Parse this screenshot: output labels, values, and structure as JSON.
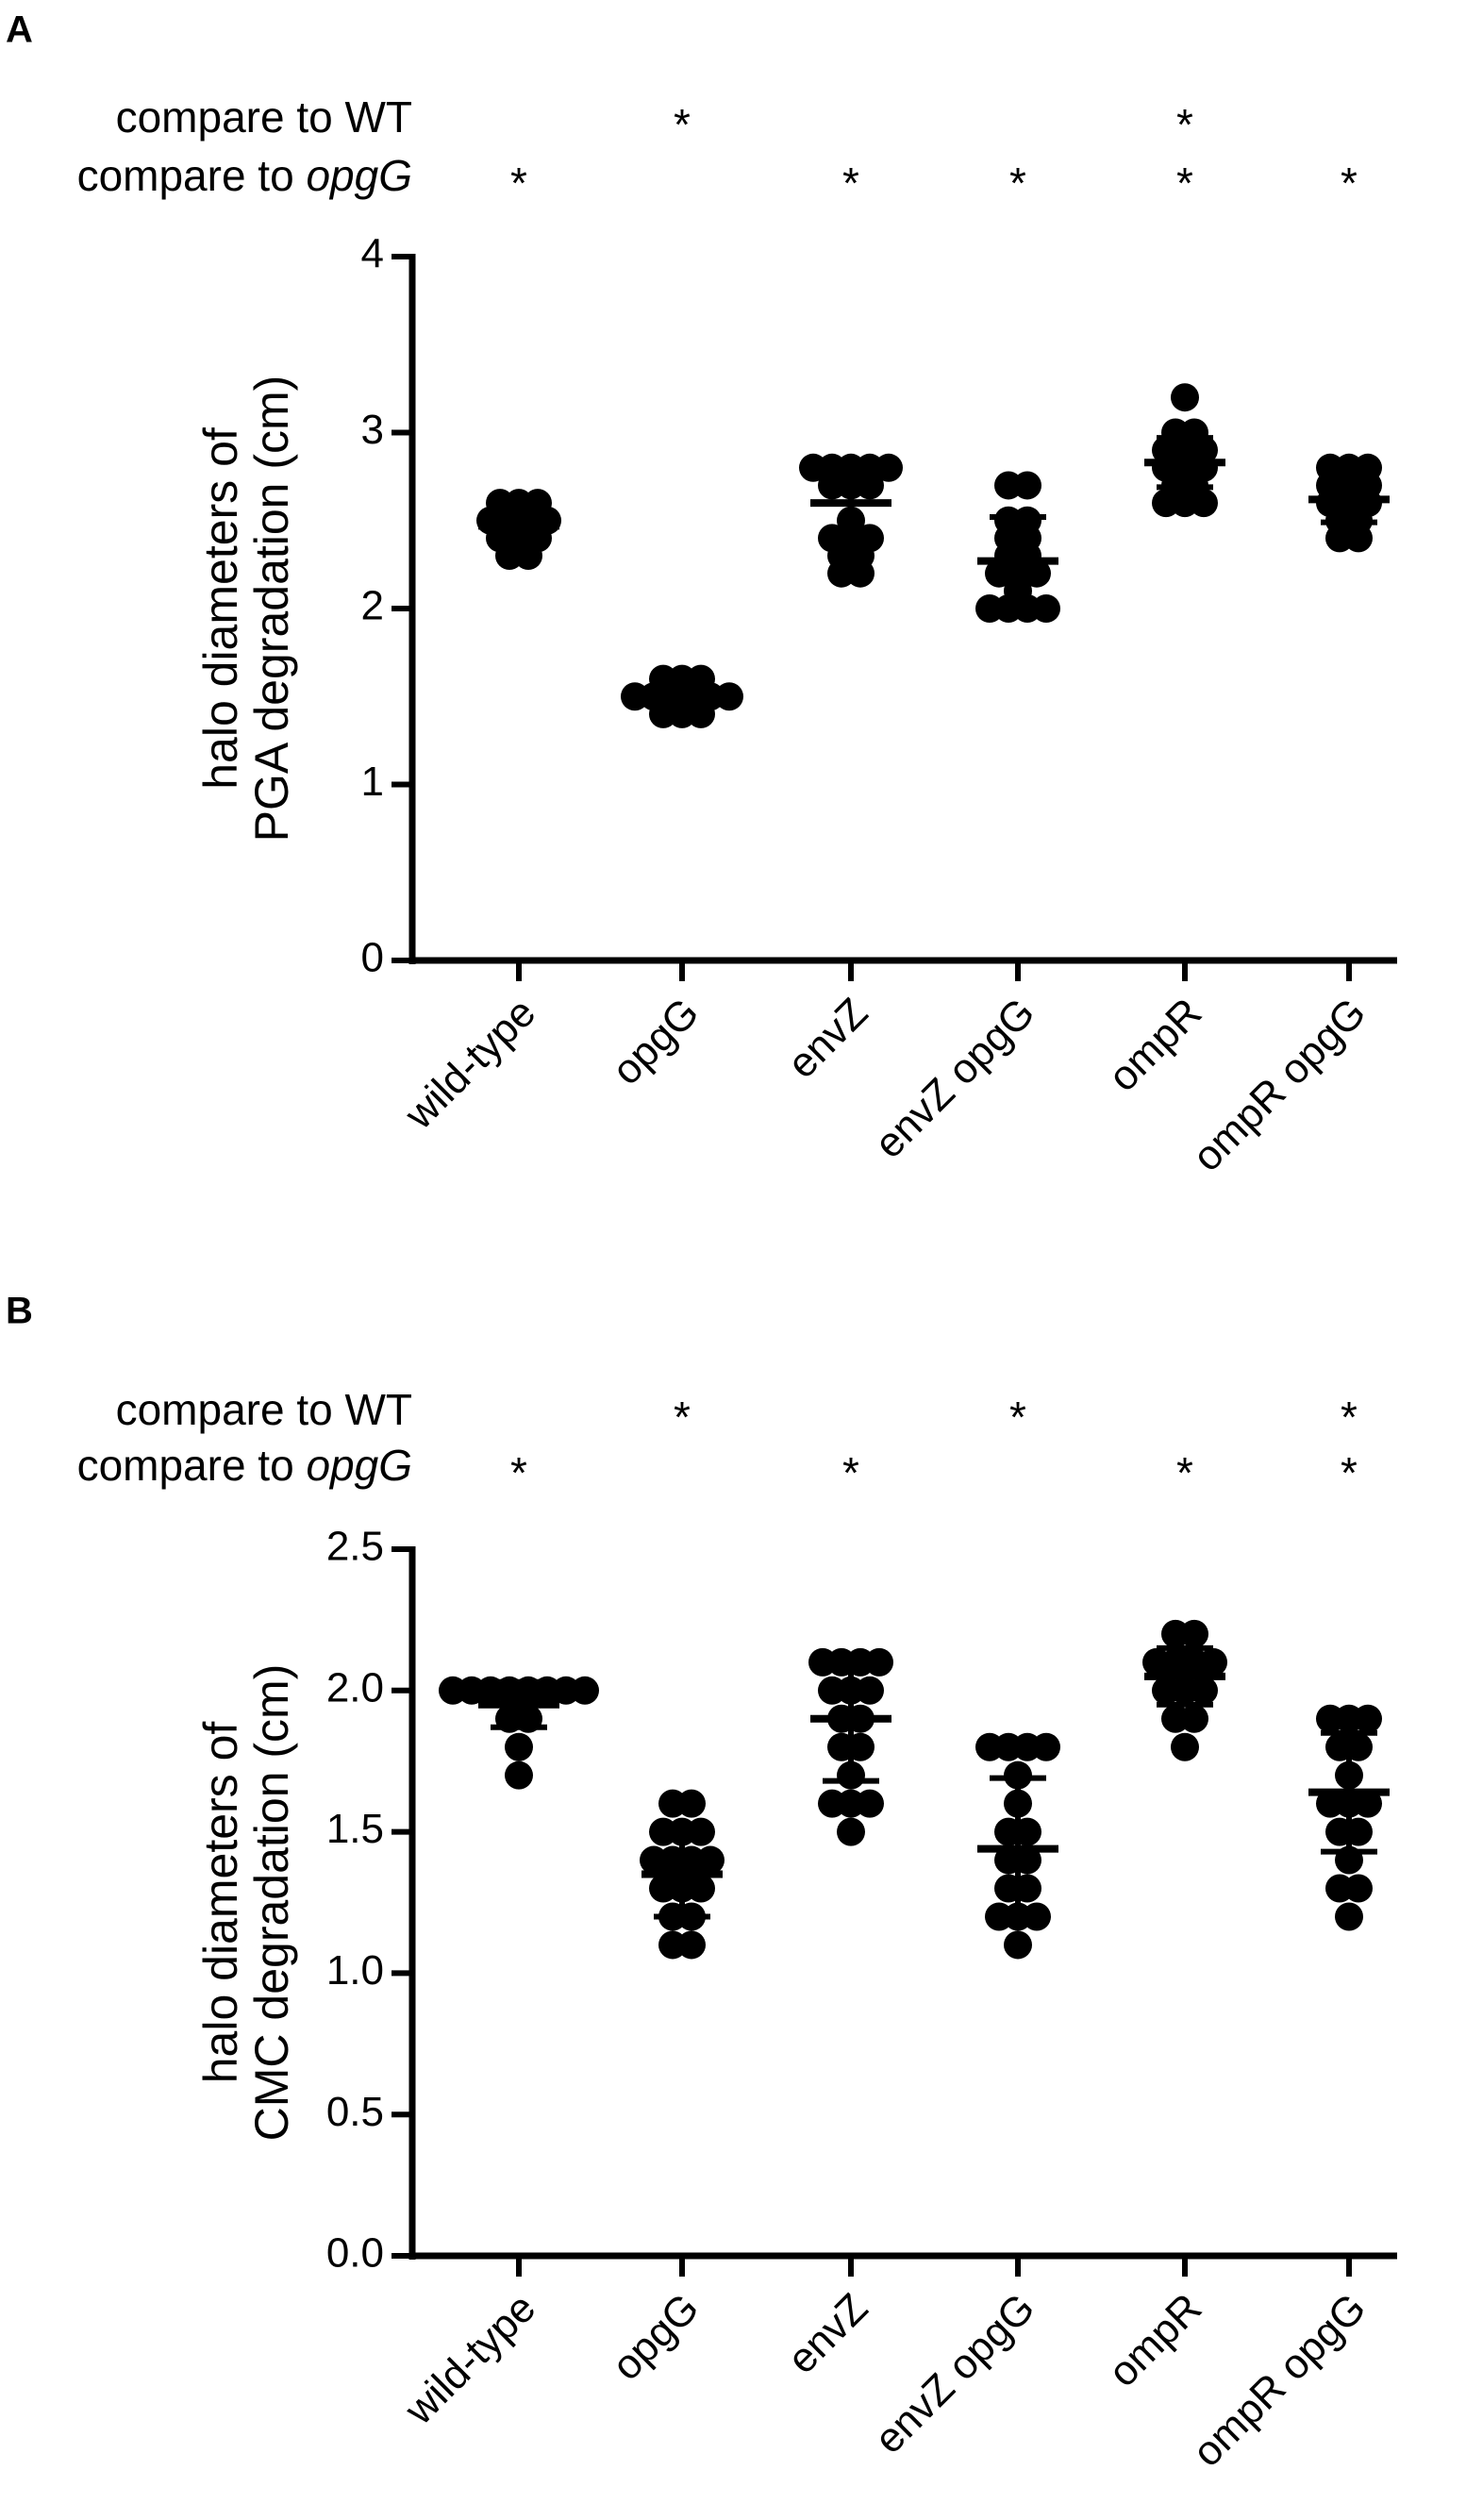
{
  "chart_data": [
    {
      "type": "strip",
      "panel_label": "A",
      "ylabel": [
        "halo diameters of",
        "PGA degradation (cm)"
      ],
      "categories": [
        "wild-type",
        "opgG",
        "envZ",
        "envZ opgG",
        "ompR",
        "ompR opgG"
      ],
      "significance": [
        {
          "label": [
            "compare to WT"
          ],
          "marks": [
            null,
            "*",
            null,
            null,
            "*",
            null
          ]
        },
        {
          "label": [
            "compare to ",
            "opgG"
          ],
          "marks": [
            "*",
            null,
            "*",
            "*",
            "*",
            "*"
          ]
        }
      ],
      "points": [
        [
          2.6,
          2.6,
          2.6,
          2.5,
          2.5,
          2.5,
          2.4,
          2.4,
          2.4,
          2.3,
          2.3,
          2.5
        ],
        [
          1.6,
          1.6,
          1.6,
          1.5,
          1.5,
          1.5,
          1.5,
          1.4,
          1.4,
          1.4,
          1.5,
          1.5
        ],
        [
          2.8,
          2.8,
          2.8,
          2.8,
          2.8,
          2.7,
          2.7,
          2.7,
          2.5,
          2.4,
          2.4,
          2.4,
          2.3,
          2.3,
          2.2,
          2.2
        ],
        [
          2.7,
          2.7,
          2.5,
          2.5,
          2.4,
          2.4,
          2.3,
          2.2,
          2.2,
          2.1,
          2.0,
          2.0,
          2.0,
          2.0,
          2.2,
          2.3
        ],
        [
          3.2,
          3.0,
          3.0,
          2.9,
          2.9,
          2.8,
          2.8,
          2.8,
          2.7,
          2.7,
          2.6,
          2.6,
          2.6,
          2.9
        ],
        [
          2.8,
          2.8,
          2.8,
          2.7,
          2.7,
          2.6,
          2.6,
          2.6,
          2.5,
          2.5,
          2.4,
          2.4,
          2.7
        ]
      ],
      "means": [
        2.47,
        1.5,
        2.6,
        2.27,
        2.83,
        2.62
      ],
      "sd": [
        0.08,
        0.06,
        0.2,
        0.25,
        0.14,
        0.13
      ],
      "color": "#000000",
      "ylim": [
        0,
        4
      ],
      "yticks": [
        0,
        1,
        2,
        3,
        4
      ]
    },
    {
      "type": "strip",
      "panel_label": "B",
      "ylabel": [
        "halo diameters of",
        "CMC degradation (cm)"
      ],
      "categories": [
        "wild-type",
        "opgG",
        "envZ",
        "envZ opgG",
        "ompR",
        "ompR opgG"
      ],
      "significance": [
        {
          "label": [
            "compare to WT"
          ],
          "marks": [
            null,
            "*",
            null,
            "*",
            null,
            "*"
          ]
        },
        {
          "label": [
            "compare to ",
            "opgG"
          ],
          "marks": [
            "*",
            null,
            "*",
            null,
            "*",
            "*"
          ]
        }
      ],
      "points": [
        [
          2.0,
          2.0,
          2.0,
          2.0,
          2.0,
          2.0,
          1.9,
          1.9,
          1.8,
          1.7,
          2.0,
          2.0
        ],
        [
          1.6,
          1.6,
          1.5,
          1.5,
          1.5,
          1.4,
          1.4,
          1.4,
          1.3,
          1.3,
          1.2,
          1.2,
          1.1,
          1.1,
          1.3,
          1.4
        ],
        [
          2.1,
          2.1,
          2.1,
          2.1,
          2.0,
          2.0,
          1.9,
          1.9,
          1.8,
          1.8,
          1.7,
          1.6,
          1.6,
          1.5,
          1.6,
          2.0
        ],
        [
          1.8,
          1.8,
          1.8,
          1.8,
          1.7,
          1.6,
          1.5,
          1.5,
          1.4,
          1.3,
          1.3,
          1.2,
          1.2,
          1.1,
          1.2,
          1.4
        ],
        [
          2.2,
          2.2,
          2.1,
          2.1,
          2.1,
          2.0,
          2.0,
          2.0,
          1.9,
          1.9,
          1.8,
          2.1
        ],
        [
          1.9,
          1.9,
          1.9,
          1.8,
          1.8,
          1.7,
          1.6,
          1.6,
          1.5,
          1.5,
          1.4,
          1.3,
          1.3,
          1.2,
          1.6
        ]
      ],
      "means": [
        1.95,
        1.35,
        1.9,
        1.44,
        2.05,
        1.64
      ],
      "sd": [
        0.08,
        0.15,
        0.22,
        0.25,
        0.1,
        0.21
      ],
      "color": "#000000",
      "ylim": [
        0,
        2.5
      ],
      "yticks": [
        {
          "value": 0,
          "label": "0.0"
        },
        0.5,
        {
          "value": 1,
          "label": "1.0"
        },
        1.5,
        {
          "value": 2,
          "label": "2.0"
        },
        2.5
      ]
    }
  ]
}
